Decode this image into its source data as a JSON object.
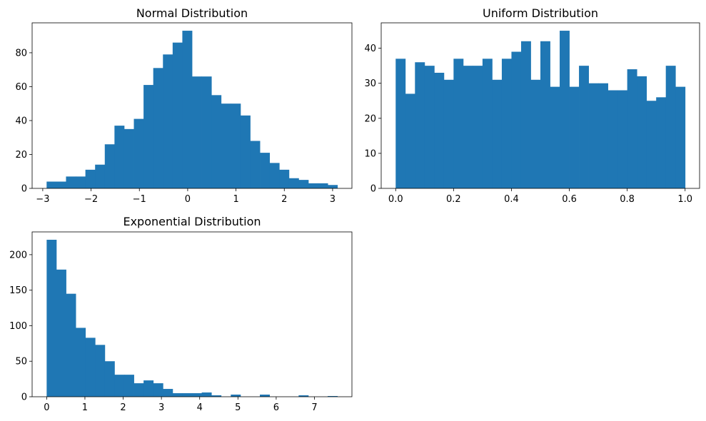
{
  "figure": {
    "background": "#ffffff",
    "bar_color": "#1f77b4",
    "axis_color": "#000000"
  },
  "chart_data": [
    {
      "type": "bar",
      "title": "Normal Distribution",
      "bins": {
        "start": -2.92,
        "end": 3.1,
        "counts": [
          4,
          4,
          7,
          7,
          11,
          14,
          26,
          37,
          35,
          41,
          61,
          71,
          79,
          86,
          93,
          66,
          66,
          55,
          50,
          50,
          43,
          28,
          21,
          15,
          11,
          6,
          5,
          3,
          3,
          2
        ]
      },
      "xlim": [
        -3.22,
        3.4
      ],
      "ylim": [
        0,
        97.65
      ],
      "xticks": [
        -3,
        -2,
        -1,
        0,
        1,
        2,
        3
      ],
      "xtick_labels": [
        "−3",
        "−2",
        "−1",
        "0",
        "1",
        "2",
        "3"
      ],
      "yticks": [
        0,
        20,
        40,
        60,
        80
      ],
      "ytick_labels": [
        "0",
        "20",
        "40",
        "60",
        "80"
      ],
      "grid": false
    },
    {
      "type": "bar",
      "title": "Uniform Distribution",
      "bins": {
        "start": 0.0,
        "end": 1.0,
        "counts": [
          37,
          27,
          36,
          35,
          33,
          31,
          37,
          35,
          35,
          37,
          31,
          37,
          39,
          42,
          31,
          42,
          29,
          45,
          29,
          35,
          30,
          30,
          28,
          28,
          34,
          32,
          25,
          26,
          35,
          29
        ]
      },
      "xlim": [
        -0.05,
        1.05
      ],
      "ylim": [
        0,
        47.25
      ],
      "xticks": [
        0.0,
        0.2,
        0.4,
        0.6,
        0.8,
        1.0
      ],
      "xtick_labels": [
        "0.0",
        "0.2",
        "0.4",
        "0.6",
        "0.8",
        "1.0"
      ],
      "yticks": [
        0,
        10,
        20,
        30,
        40
      ],
      "ytick_labels": [
        "0",
        "10",
        "20",
        "30",
        "40"
      ],
      "grid": false
    },
    {
      "type": "bar",
      "title": "Exponential Distribution",
      "bins": {
        "start": 0.0,
        "end": 7.6,
        "counts": [
          221,
          179,
          145,
          97,
          83,
          73,
          50,
          31,
          31,
          19,
          23,
          19,
          11,
          5,
          5,
          5,
          6,
          2,
          0,
          3,
          0,
          0,
          3,
          0,
          0,
          0,
          2,
          0,
          0,
          1
        ]
      },
      "xlim": [
        -0.38,
        7.98
      ],
      "ylim": [
        0,
        232.05
      ],
      "xticks": [
        0,
        1,
        2,
        3,
        4,
        5,
        6,
        7
      ],
      "xtick_labels": [
        "0",
        "1",
        "2",
        "3",
        "4",
        "5",
        "6",
        "7"
      ],
      "yticks": [
        0,
        50,
        100,
        150,
        200
      ],
      "ytick_labels": [
        "0",
        "50",
        "100",
        "150",
        "200"
      ],
      "grid": false
    }
  ]
}
